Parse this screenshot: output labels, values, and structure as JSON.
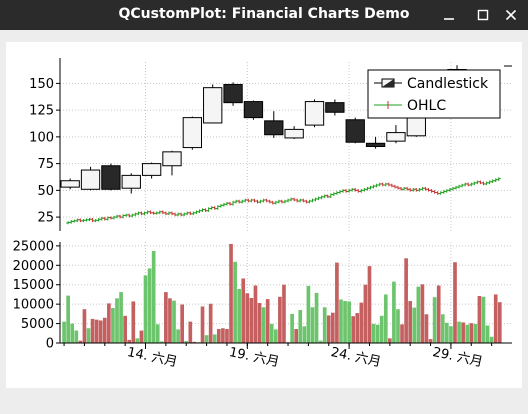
{
  "window": {
    "title": "QCustomPlot: Financial Charts Demo",
    "min_icon": "minimize-icon",
    "max_icon": "maximize-icon",
    "close_icon": "close-icon"
  },
  "chart_data": [
    {
      "type": "candlestick-ohlc",
      "ylim": [
        12,
        170
      ],
      "xlim": [
        9.8,
        32.0
      ],
      "yticks": [
        25,
        50,
        75,
        100,
        125,
        150
      ],
      "grid": true,
      "legend_position": "top-right",
      "series": [
        {
          "name": "Candlestick",
          "bin_days": 1,
          "positive_color": "#f5f5f5",
          "negative_color": "#282828",
          "candles": [
            {
              "x": 10.3,
              "open": 53,
              "high": 61,
              "low": 51,
              "close": 59
            },
            {
              "x": 11.3,
              "open": 51,
              "high": 72,
              "low": 50,
              "close": 69
            },
            {
              "x": 12.3,
              "open": 73,
              "high": 75,
              "low": 50,
              "close": 51
            },
            {
              "x": 13.3,
              "open": 52,
              "high": 66,
              "low": 47,
              "close": 64
            },
            {
              "x": 14.3,
              "open": 64,
              "high": 76,
              "low": 61,
              "close": 75
            },
            {
              "x": 15.3,
              "open": 73,
              "high": 87,
              "low": 64,
              "close": 86
            },
            {
              "x": 16.3,
              "open": 90,
              "high": 119,
              "low": 88,
              "close": 118
            },
            {
              "x": 17.3,
              "open": 113,
              "high": 149,
              "low": 113,
              "close": 146
            },
            {
              "x": 18.3,
              "open": 149,
              "high": 151,
              "low": 129,
              "close": 132
            },
            {
              "x": 19.3,
              "open": 133,
              "high": 134,
              "low": 116,
              "close": 118
            },
            {
              "x": 20.3,
              "open": 115,
              "high": 124,
              "low": 99,
              "close": 102
            },
            {
              "x": 21.3,
              "open": 99,
              "high": 110,
              "low": 98,
              "close": 107
            },
            {
              "x": 22.3,
              "open": 111,
              "high": 135,
              "low": 109,
              "close": 133
            },
            {
              "x": 23.3,
              "open": 132,
              "high": 135,
              "low": 120,
              "close": 123
            },
            {
              "x": 24.3,
              "open": 116,
              "high": 118,
              "low": 94,
              "close": 95
            },
            {
              "x": 25.3,
              "open": 94,
              "high": 100,
              "low": 89,
              "close": 91
            },
            {
              "x": 26.3,
              "open": 96,
              "high": 111,
              "low": 94,
              "close": 104
            },
            {
              "x": 27.3,
              "open": 101,
              "high": 122,
              "low": 100,
              "close": 119
            },
            {
              "x": 28.3,
              "open": 126,
              "high": 160,
              "low": 124,
              "close": 158
            },
            {
              "x": 29.3,
              "open": 152,
              "high": 167,
              "low": 148,
              "close": 163
            }
          ]
        },
        {
          "name": "OHLC",
          "bin_days": 0.25,
          "positive_color": "#1ea01e",
          "negative_color": "#c83232",
          "levels": [
            20,
            21,
            21.5,
            22.5,
            21.5,
            22,
            22.5,
            23,
            21.5,
            22,
            23,
            24,
            23,
            24.5,
            24,
            25,
            26,
            25,
            26.5,
            27,
            26,
            27,
            28,
            29,
            28,
            29,
            30,
            29,
            28.5,
            29,
            30,
            29,
            28,
            29,
            28,
            27,
            28,
            27,
            28,
            29,
            28,
            29,
            30,
            31,
            32,
            31,
            33,
            34,
            33,
            35,
            36,
            37,
            38,
            37,
            39,
            40,
            39,
            40,
            41,
            40,
            41,
            40,
            39,
            40,
            41,
            40,
            39,
            38,
            39,
            40,
            39,
            40,
            41,
            42,
            41,
            40,
            41,
            40,
            39,
            40,
            41,
            42,
            43,
            44,
            45,
            44,
            46,
            47,
            48,
            49,
            50,
            49,
            50,
            51,
            50,
            49,
            50,
            51,
            52,
            53,
            54,
            55,
            56,
            55,
            56,
            55,
            54,
            53,
            52,
            51,
            52,
            51,
            50,
            51,
            50,
            51,
            52,
            51,
            50,
            49,
            48,
            47,
            48,
            49,
            50,
            51,
            52,
            53,
            54,
            55,
            56,
            55,
            56,
            57,
            58,
            57,
            56,
            57,
            58,
            59,
            60,
            61
          ]
        }
      ]
    },
    {
      "type": "bar",
      "ylim": [
        0,
        26000
      ],
      "yticks": [
        0,
        5000,
        10000,
        15000,
        20000,
        25000
      ],
      "grid": true,
      "x_ticks": [
        {
          "x": 14,
          "label": "14. 六月"
        },
        {
          "x": 19,
          "label": "19. 六月"
        },
        {
          "x": 24,
          "label": "24. 六月"
        },
        {
          "x": 29,
          "label": "29. 六月"
        }
      ],
      "positive_color": "#1ea01e",
      "negative_color": "#c83232",
      "volumes": [
        {
          "x": 10.0,
          "v": 5500,
          "d": 1
        },
        {
          "x": 10.2,
          "v": 12200,
          "d": 1
        },
        {
          "x": 10.4,
          "v": 5000,
          "d": 1
        },
        {
          "x": 10.6,
          "v": 3200,
          "d": 1
        },
        {
          "x": 10.8,
          "v": 600,
          "d": -1
        },
        {
          "x": 11.0,
          "v": 8700,
          "d": -1
        },
        {
          "x": 11.2,
          "v": 3800,
          "d": 1
        },
        {
          "x": 11.4,
          "v": 6200,
          "d": -1
        },
        {
          "x": 11.6,
          "v": 6000,
          "d": -1
        },
        {
          "x": 11.8,
          "v": 5800,
          "d": -1
        },
        {
          "x": 12.0,
          "v": 6500,
          "d": -1
        },
        {
          "x": 12.2,
          "v": 10200,
          "d": -1
        },
        {
          "x": 12.4,
          "v": 9000,
          "d": 1
        },
        {
          "x": 12.6,
          "v": 11500,
          "d": 1
        },
        {
          "x": 12.8,
          "v": 13100,
          "d": 1
        },
        {
          "x": 13.0,
          "v": 7000,
          "d": -1
        },
        {
          "x": 13.2,
          "v": 800,
          "d": -1
        },
        {
          "x": 13.4,
          "v": 10700,
          "d": -1
        },
        {
          "x": 13.6,
          "v": 1200,
          "d": 1
        },
        {
          "x": 13.8,
          "v": 3200,
          "d": -1
        },
        {
          "x": 14.0,
          "v": 17400,
          "d": 1
        },
        {
          "x": 14.2,
          "v": 19200,
          "d": 1
        },
        {
          "x": 14.4,
          "v": 23700,
          "d": 1
        },
        {
          "x": 14.6,
          "v": 4800,
          "d": 1
        },
        {
          "x": 14.8,
          "v": 400,
          "d": 1
        },
        {
          "x": 15.0,
          "v": 13100,
          "d": -1
        },
        {
          "x": 15.2,
          "v": 11500,
          "d": -1
        },
        {
          "x": 15.4,
          "v": 10900,
          "d": 1
        },
        {
          "x": 15.6,
          "v": 3500,
          "d": 1
        },
        {
          "x": 15.8,
          "v": 9900,
          "d": -1
        },
        {
          "x": 16.0,
          "v": 500,
          "d": 1
        },
        {
          "x": 16.2,
          "v": 5500,
          "d": -1
        },
        {
          "x": 16.4,
          "v": 300,
          "d": -1
        },
        {
          "x": 16.6,
          "v": 200,
          "d": 1
        },
        {
          "x": 16.8,
          "v": 9400,
          "d": -1
        },
        {
          "x": 17.0,
          "v": 2000,
          "d": 1
        },
        {
          "x": 17.2,
          "v": 10100,
          "d": -1
        },
        {
          "x": 17.4,
          "v": 2200,
          "d": 1
        },
        {
          "x": 17.6,
          "v": 3600,
          "d": -1
        },
        {
          "x": 17.8,
          "v": 3800,
          "d": -1
        },
        {
          "x": 18.0,
          "v": 3600,
          "d": -1
        },
        {
          "x": 18.2,
          "v": 25500,
          "d": -1
        },
        {
          "x": 18.4,
          "v": 20900,
          "d": 1
        },
        {
          "x": 18.6,
          "v": 13900,
          "d": 1
        },
        {
          "x": 18.8,
          "v": 16600,
          "d": -1
        },
        {
          "x": 19.0,
          "v": 12800,
          "d": -1
        },
        {
          "x": 19.2,
          "v": 11600,
          "d": -1
        },
        {
          "x": 19.4,
          "v": 14800,
          "d": -1
        },
        {
          "x": 19.6,
          "v": 10300,
          "d": -1
        },
        {
          "x": 19.8,
          "v": 9200,
          "d": 1
        },
        {
          "x": 20.0,
          "v": 11300,
          "d": -1
        },
        {
          "x": 20.2,
          "v": 4900,
          "d": 1
        },
        {
          "x": 20.4,
          "v": 3500,
          "d": 1
        },
        {
          "x": 20.6,
          "v": 11900,
          "d": -1
        },
        {
          "x": 20.8,
          "v": 15000,
          "d": -1
        },
        {
          "x": 21.0,
          "v": 200,
          "d": -1
        },
        {
          "x": 21.2,
          "v": 7500,
          "d": 1
        },
        {
          "x": 21.4,
          "v": 3600,
          "d": -1
        },
        {
          "x": 21.6,
          "v": 8500,
          "d": 1
        },
        {
          "x": 21.8,
          "v": 4300,
          "d": 1
        },
        {
          "x": 22.0,
          "v": 14700,
          "d": 1
        },
        {
          "x": 22.2,
          "v": 9200,
          "d": 1
        },
        {
          "x": 22.4,
          "v": 12900,
          "d": 1
        },
        {
          "x": 22.6,
          "v": 600,
          "d": 1
        },
        {
          "x": 22.8,
          "v": 9200,
          "d": 1
        },
        {
          "x": 23.0,
          "v": 7100,
          "d": -1
        },
        {
          "x": 23.2,
          "v": 7800,
          "d": -1
        },
        {
          "x": 23.4,
          "v": 20700,
          "d": -1
        },
        {
          "x": 23.6,
          "v": 11200,
          "d": 1
        },
        {
          "x": 23.8,
          "v": 10800,
          "d": 1
        },
        {
          "x": 24.0,
          "v": 10700,
          "d": 1
        },
        {
          "x": 24.2,
          "v": 6900,
          "d": -1
        },
        {
          "x": 24.4,
          "v": 7700,
          "d": -1
        },
        {
          "x": 24.6,
          "v": 10400,
          "d": -1
        },
        {
          "x": 24.8,
          "v": 15000,
          "d": -1
        },
        {
          "x": 25.0,
          "v": 19800,
          "d": -1
        },
        {
          "x": 25.2,
          "v": 4900,
          "d": 1
        },
        {
          "x": 25.4,
          "v": 4700,
          "d": 1
        },
        {
          "x": 25.6,
          "v": 7000,
          "d": 1
        },
        {
          "x": 25.8,
          "v": 12500,
          "d": 1
        },
        {
          "x": 26.0,
          "v": 1200,
          "d": -1
        },
        {
          "x": 26.2,
          "v": 15800,
          "d": 1
        },
        {
          "x": 26.4,
          "v": 8700,
          "d": 1
        },
        {
          "x": 26.6,
          "v": 4800,
          "d": -1
        },
        {
          "x": 26.8,
          "v": 21800,
          "d": -1
        },
        {
          "x": 27.0,
          "v": 10800,
          "d": -1
        },
        {
          "x": 27.2,
          "v": 9100,
          "d": 1
        },
        {
          "x": 27.4,
          "v": 14500,
          "d": 1
        },
        {
          "x": 27.6,
          "v": 15100,
          "d": -1
        },
        {
          "x": 27.8,
          "v": 7400,
          "d": -1
        },
        {
          "x": 28.0,
          "v": 1000,
          "d": -1
        },
        {
          "x": 28.2,
          "v": 11800,
          "d": 1
        },
        {
          "x": 28.4,
          "v": 14800,
          "d": -1
        },
        {
          "x": 28.6,
          "v": 7400,
          "d": 1
        },
        {
          "x": 28.8,
          "v": 5200,
          "d": 1
        },
        {
          "x": 29.0,
          "v": 4300,
          "d": 1
        },
        {
          "x": 29.2,
          "v": 20800,
          "d": -1
        },
        {
          "x": 29.4,
          "v": 5500,
          "d": 1
        },
        {
          "x": 29.6,
          "v": 5300,
          "d": -1
        },
        {
          "x": 29.8,
          "v": 4700,
          "d": 1
        },
        {
          "x": 30.0,
          "v": 5100,
          "d": -1
        },
        {
          "x": 30.2,
          "v": 4900,
          "d": 1
        },
        {
          "x": 30.4,
          "v": 12100,
          "d": -1
        },
        {
          "x": 30.6,
          "v": 11900,
          "d": 1
        },
        {
          "x": 30.8,
          "v": 4500,
          "d": 1
        },
        {
          "x": 31.0,
          "v": 1600,
          "d": 1
        },
        {
          "x": 31.2,
          "v": 12500,
          "d": -1
        },
        {
          "x": 31.4,
          "v": 10500,
          "d": -1
        }
      ]
    }
  ]
}
